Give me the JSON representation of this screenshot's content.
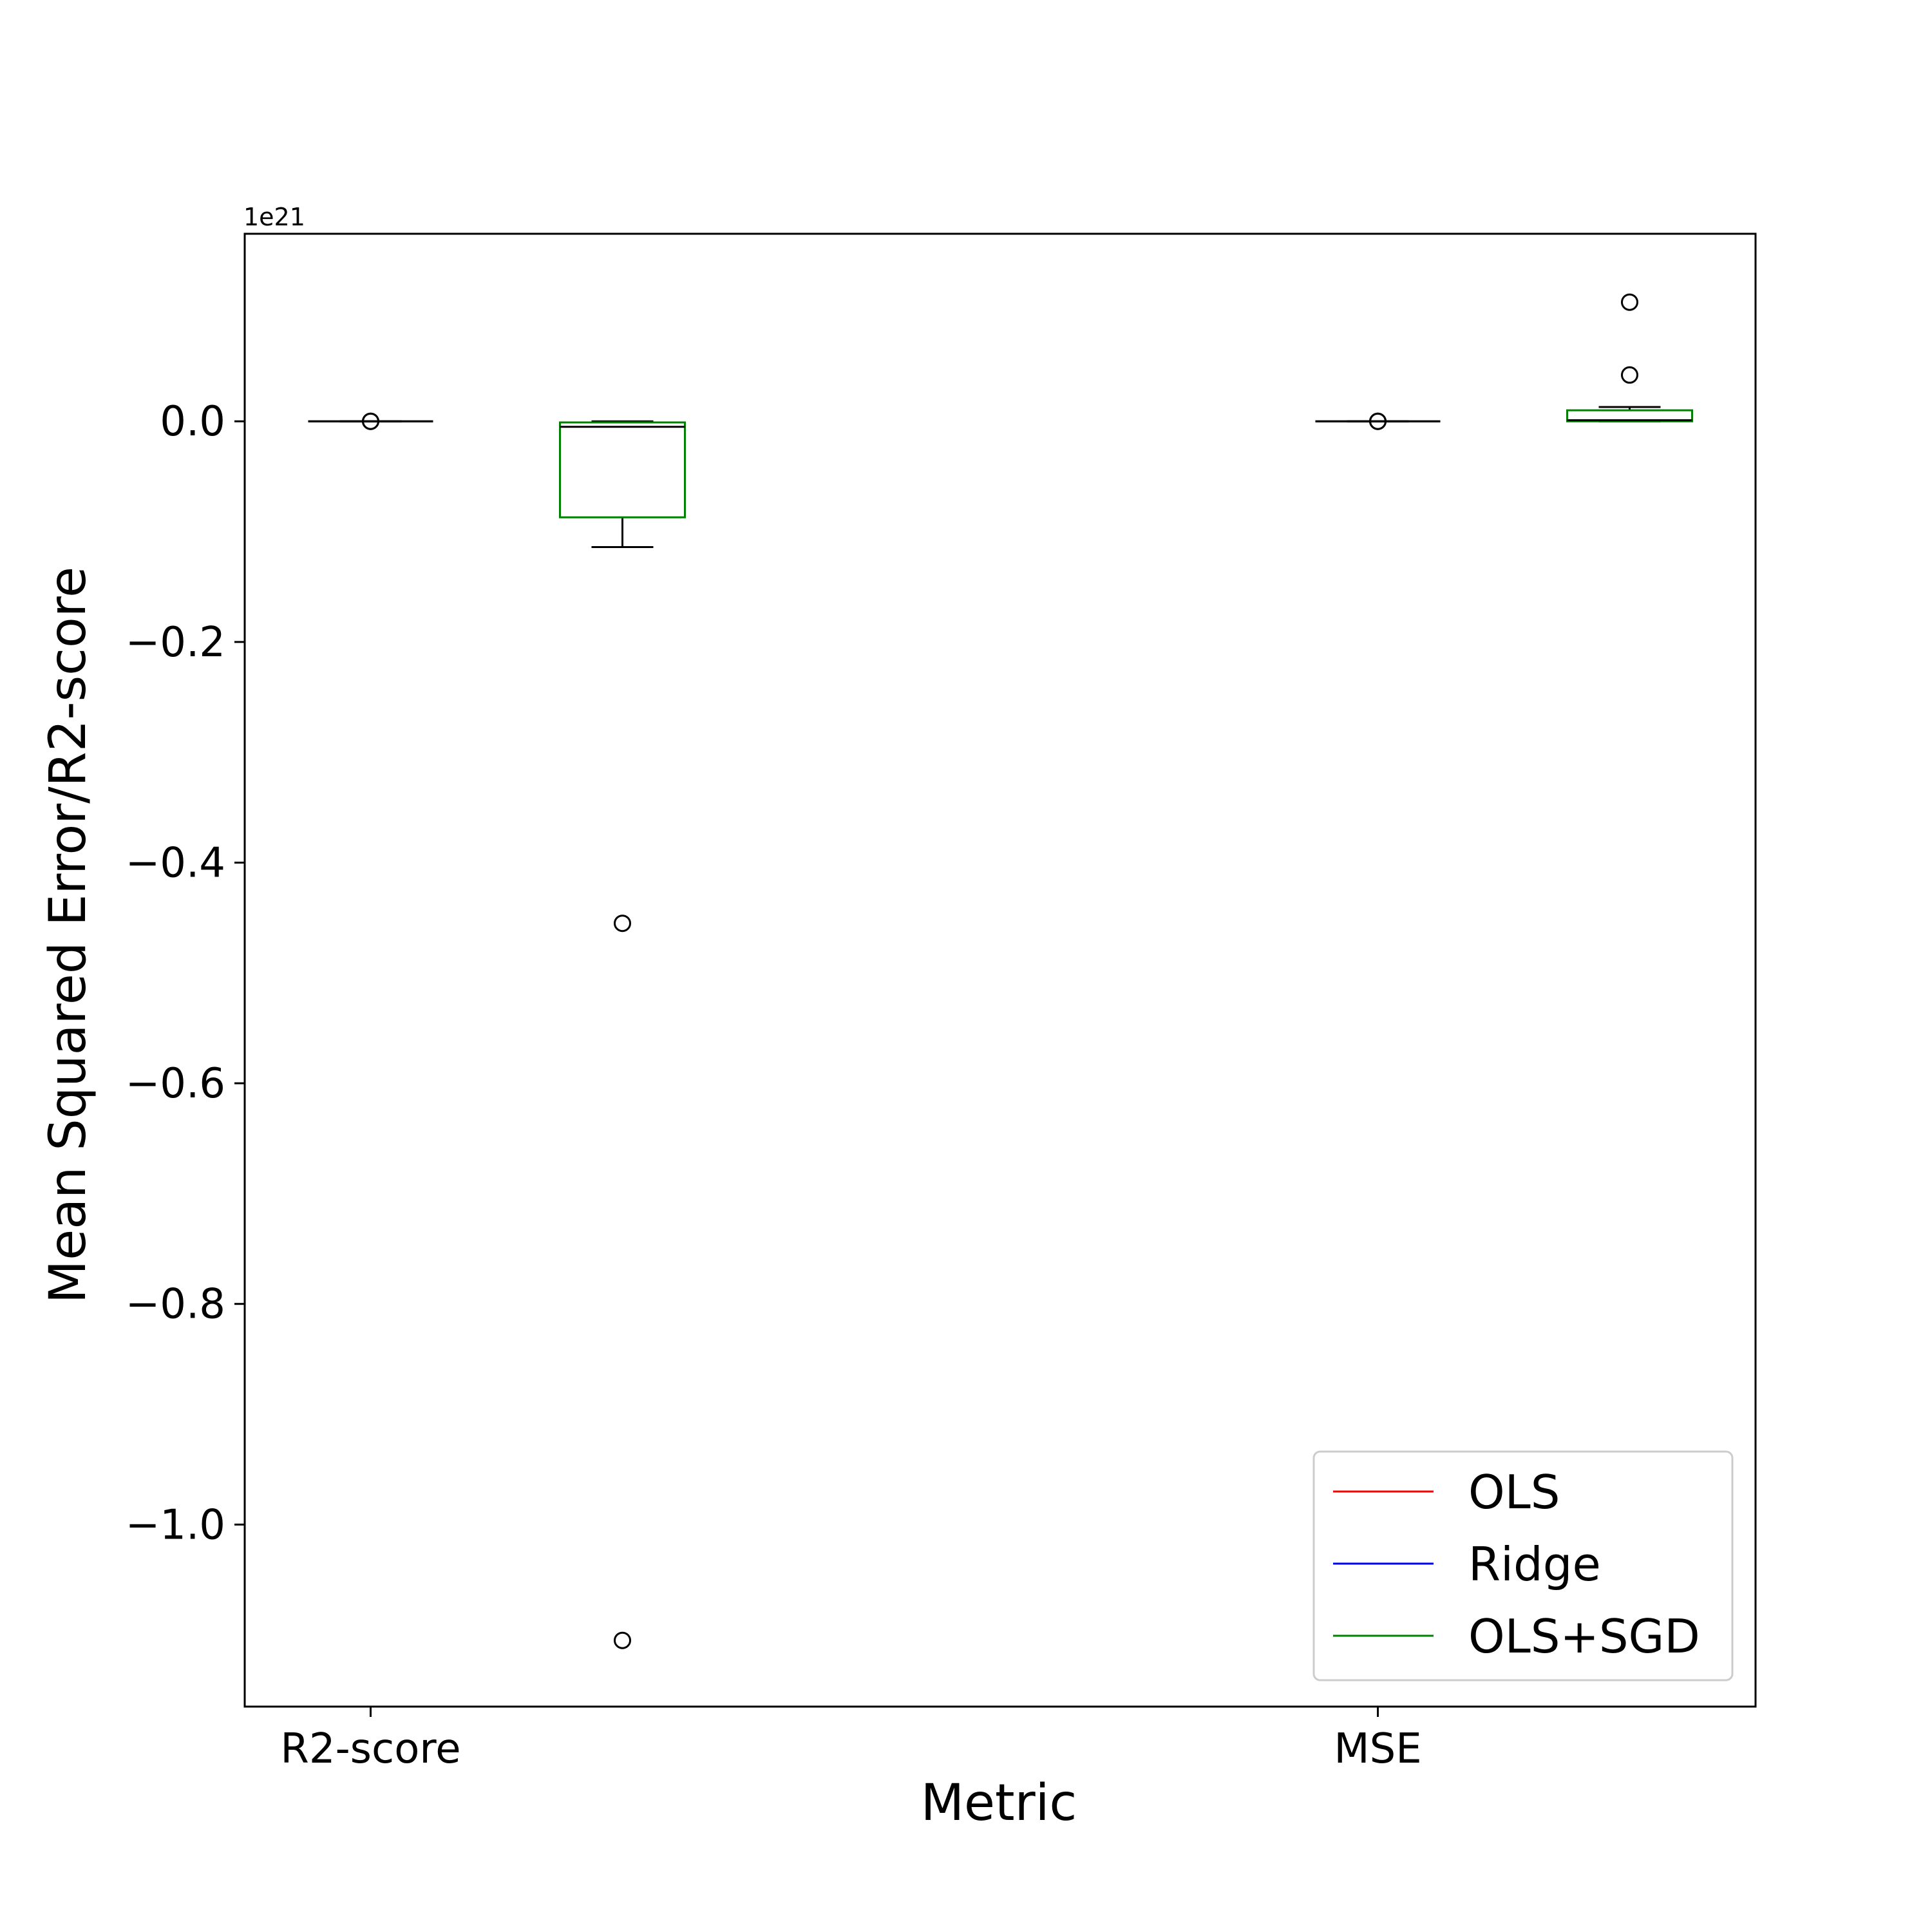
{
  "chart_data": {
    "type": "boxplot",
    "xlabel": "Metric",
    "ylabel": "Mean Squared Error/R2-score",
    "y_offset_label": "1e21",
    "y_scale_factor": 1e+21,
    "ylim": [
      -1.165,
      0.17
    ],
    "yticks": [
      0.0,
      -0.2,
      -0.4,
      -0.6,
      -0.8,
      -1.0
    ],
    "ytick_labels": [
      "0.0",
      "−0.2",
      "−0.4",
      "−0.6",
      "−0.8",
      "−1.0"
    ],
    "xlim": [
      0.5,
      3.5
    ],
    "categories": [
      {
        "label": "R2-score",
        "x": 0.75
      },
      {
        "label": "MSE",
        "x": 2.75
      }
    ],
    "legend": {
      "position": "lower right",
      "entries": [
        {
          "label": "OLS",
          "color": "#ff0000"
        },
        {
          "label": "Ridge",
          "color": "#0000ff"
        },
        {
          "label": "OLS+SGD",
          "color": "#008000"
        }
      ]
    },
    "boxes": [
      {
        "series": "OLS",
        "category": "R2-score",
        "x": 0.75,
        "color": "#ff0000",
        "whisker_low": 0.0,
        "q1": 0.0,
        "median": 0.0,
        "q3": 0.0,
        "whisker_high": 0.0,
        "outliers": [
          0.0
        ]
      },
      {
        "series": "Ridge",
        "category": "R2-score",
        "x": 0.75,
        "color": "#0000ff",
        "whisker_low": 0.0,
        "q1": 0.0,
        "median": 0.0,
        "q3": 0.0,
        "whisker_high": 0.0,
        "outliers": [
          0.0
        ]
      },
      {
        "series": "OLS+SGD",
        "category": "R2-score",
        "x": 1.25,
        "color": "#008000",
        "whisker_low": -0.114,
        "q1": -0.087,
        "median": -0.005,
        "q3": -0.001,
        "whisker_high": 0.0,
        "outliers": [
          -0.455,
          -1.105
        ]
      },
      {
        "series": "OLS",
        "category": "MSE",
        "x": 2.75,
        "color": "#ff0000",
        "whisker_low": 0.0,
        "q1": 0.0,
        "median": 0.0,
        "q3": 0.0,
        "whisker_high": 0.0,
        "outliers": [
          0.0
        ]
      },
      {
        "series": "Ridge",
        "category": "MSE",
        "x": 2.75,
        "color": "#0000ff",
        "whisker_low": 0.0,
        "q1": 0.0,
        "median": 0.0,
        "q3": 0.0,
        "whisker_high": 0.0,
        "outliers": [
          0.0
        ]
      },
      {
        "series": "OLS+SGD",
        "category": "MSE",
        "x": 3.25,
        "color": "#008000",
        "whisker_low": 0.0,
        "q1": 0.0,
        "median": 0.001,
        "q3": 0.01,
        "whisker_high": 0.013,
        "outliers": [
          0.042,
          0.108
        ]
      }
    ]
  }
}
